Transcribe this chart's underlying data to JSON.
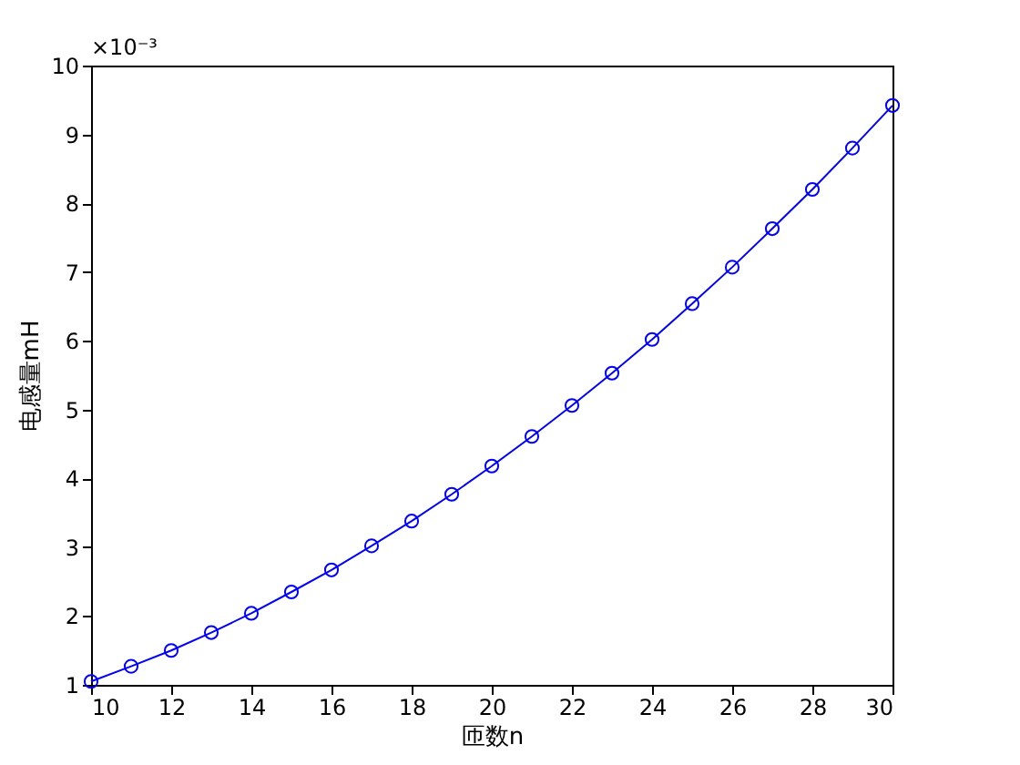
{
  "chart_data": {
    "type": "line",
    "xlabel": "匝数n",
    "ylabel": "电感量mH",
    "annotations": [
      "×10⁻³"
    ],
    "x": [
      10,
      11,
      12,
      13,
      14,
      15,
      16,
      17,
      18,
      19,
      20,
      21,
      22,
      23,
      24,
      25,
      26,
      27,
      28,
      29,
      30
    ],
    "series": [
      {
        "color": "#0000ff",
        "values": [
          1.05,
          1.27,
          1.5,
          1.76,
          2.04,
          2.35,
          2.67,
          3.02,
          3.38,
          3.77,
          4.18,
          4.61,
          5.06,
          5.53,
          6.02,
          6.54,
          7.07,
          7.63,
          8.2,
          8.8,
          9.42
        ]
      }
    ],
    "xlim": [
      10,
      30
    ],
    "xticks": [
      10,
      12,
      14,
      16,
      18,
      20,
      22,
      24,
      26,
      28,
      30
    ],
    "ylim": [
      1,
      10
    ],
    "yticks": [
      1,
      2,
      3,
      4,
      5,
      6,
      7,
      8,
      9,
      10
    ],
    "grid": false,
    "marker": "circle",
    "line_style": "solid"
  }
}
